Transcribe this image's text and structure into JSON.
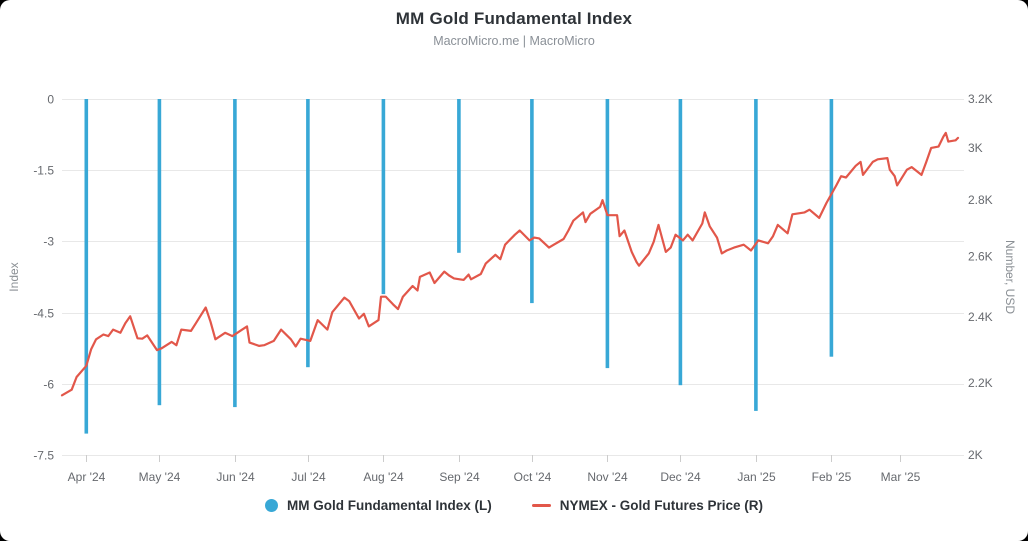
{
  "header": {
    "title": "MM Gold Fundamental Index",
    "subtitle": "MacroMicro.me | MacroMicro"
  },
  "colors": {
    "index_bar": "#38A8D6",
    "price_line": "#E2574A",
    "grid": "#E8E8E8",
    "tick_mark": "#CCCCCC",
    "tick_label": "#66696E",
    "axis_title": "#8A8F94",
    "card_bg": "#FFFFFF",
    "page_bg": "#000000"
  },
  "legend": {
    "items": [
      {
        "label": "MM Gold Fundamental Index (L)",
        "swatch": "circle-icon"
      },
      {
        "label": "NYMEX - Gold Futures Price (R)",
        "swatch": "line-icon"
      }
    ]
  },
  "chart_data": {
    "type": "mixed",
    "x_axis": {
      "range": [
        "2024-03-22",
        "2025-03-25"
      ],
      "ticks": [
        {
          "date": "2024-04-01",
          "label": "Apr '24"
        },
        {
          "date": "2024-05-01",
          "label": "May '24"
        },
        {
          "date": "2024-06-01",
          "label": "Jun '24"
        },
        {
          "date": "2024-07-01",
          "label": "Jul '24"
        },
        {
          "date": "2024-08-01",
          "label": "Aug '24"
        },
        {
          "date": "2024-09-01",
          "label": "Sep '24"
        },
        {
          "date": "2024-10-01",
          "label": "Oct '24"
        },
        {
          "date": "2024-11-01",
          "label": "Nov '24"
        },
        {
          "date": "2024-12-01",
          "label": "Dec '24"
        },
        {
          "date": "2025-01-01",
          "label": "Jan '25"
        },
        {
          "date": "2025-02-01",
          "label": "Feb '25"
        },
        {
          "date": "2025-03-01",
          "label": "Mar '25"
        }
      ]
    },
    "y_left": {
      "title": "Index",
      "scale": "linear",
      "range": [
        -7.5,
        0
      ],
      "ticks": [
        {
          "v": 0,
          "label": "0"
        },
        {
          "v": -1.5,
          "label": "-1.5"
        },
        {
          "v": -3,
          "label": "-3"
        },
        {
          "v": -4.5,
          "label": "-4.5"
        },
        {
          "v": -6,
          "label": "-6"
        },
        {
          "v": -7.5,
          "label": "-7.5"
        }
      ]
    },
    "y_right": {
      "title": "Number, USD",
      "scale": "log",
      "range": [
        2000,
        3200
      ],
      "ticks": [
        {
          "v": 3200,
          "label": "3.2K"
        },
        {
          "v": 3000,
          "label": "3K"
        },
        {
          "v": 2800,
          "label": "2.8K"
        },
        {
          "v": 2600,
          "label": "2.6K"
        },
        {
          "v": 2400,
          "label": "2.4K"
        },
        {
          "v": 2200,
          "label": "2.2K"
        },
        {
          "v": 2000,
          "label": "2K"
        }
      ]
    },
    "series": [
      {
        "name": "MM Gold Fundamental Index (L)",
        "type": "bar",
        "axis": "left",
        "points": [
          [
            "2024-04-01",
            -7.05
          ],
          [
            "2024-05-01",
            -6.45
          ],
          [
            "2024-06-01",
            -6.49
          ],
          [
            "2024-07-01",
            -5.65
          ],
          [
            "2024-08-01",
            -4.11
          ],
          [
            "2024-09-01",
            -3.24
          ],
          [
            "2024-10-01",
            -4.3
          ],
          [
            "2024-11-01",
            -5.67
          ],
          [
            "2024-12-01",
            -6.03
          ],
          [
            "2025-01-01",
            -6.57
          ],
          [
            "2025-02-01",
            -5.43
          ]
        ]
      },
      {
        "name": "NYMEX - Gold Futures Price (R)",
        "type": "line",
        "axis": "right",
        "points": [
          [
            "2024-03-22",
            2164
          ],
          [
            "2024-03-26",
            2180
          ],
          [
            "2024-03-28",
            2217
          ],
          [
            "2024-04-01",
            2250
          ],
          [
            "2024-04-03",
            2300
          ],
          [
            "2024-04-05",
            2330
          ],
          [
            "2024-04-08",
            2345
          ],
          [
            "2024-04-10",
            2340
          ],
          [
            "2024-04-12",
            2360
          ],
          [
            "2024-04-15",
            2350
          ],
          [
            "2024-04-17",
            2380
          ],
          [
            "2024-04-19",
            2402
          ],
          [
            "2024-04-22",
            2333
          ],
          [
            "2024-04-24",
            2332
          ],
          [
            "2024-04-26",
            2342
          ],
          [
            "2024-04-30",
            2297
          ],
          [
            "2024-05-02",
            2303
          ],
          [
            "2024-05-06",
            2322
          ],
          [
            "2024-05-08",
            2312
          ],
          [
            "2024-05-10",
            2360
          ],
          [
            "2024-05-14",
            2356
          ],
          [
            "2024-05-16",
            2380
          ],
          [
            "2024-05-20",
            2430
          ],
          [
            "2024-05-22",
            2385
          ],
          [
            "2024-05-24",
            2330
          ],
          [
            "2024-05-28",
            2350
          ],
          [
            "2024-05-31",
            2340
          ],
          [
            "2024-06-04",
            2360
          ],
          [
            "2024-06-06",
            2370
          ],
          [
            "2024-06-07",
            2320
          ],
          [
            "2024-06-11",
            2310
          ],
          [
            "2024-06-13",
            2312
          ],
          [
            "2024-06-17",
            2325
          ],
          [
            "2024-06-20",
            2360
          ],
          [
            "2024-06-24",
            2330
          ],
          [
            "2024-06-26",
            2308
          ],
          [
            "2024-06-28",
            2332
          ],
          [
            "2024-07-02",
            2325
          ],
          [
            "2024-07-05",
            2390
          ],
          [
            "2024-07-09",
            2360
          ],
          [
            "2024-07-11",
            2415
          ],
          [
            "2024-07-16",
            2462
          ],
          [
            "2024-07-18",
            2450
          ],
          [
            "2024-07-22",
            2395
          ],
          [
            "2024-07-24",
            2410
          ],
          [
            "2024-07-26",
            2370
          ],
          [
            "2024-07-30",
            2390
          ],
          [
            "2024-07-31",
            2465
          ],
          [
            "2024-08-02",
            2465
          ],
          [
            "2024-08-05",
            2440
          ],
          [
            "2024-08-07",
            2425
          ],
          [
            "2024-08-09",
            2465
          ],
          [
            "2024-08-13",
            2500
          ],
          [
            "2024-08-15",
            2485
          ],
          [
            "2024-08-16",
            2530
          ],
          [
            "2024-08-20",
            2545
          ],
          [
            "2024-08-22",
            2510
          ],
          [
            "2024-08-26",
            2548
          ],
          [
            "2024-08-28",
            2535
          ],
          [
            "2024-08-30",
            2525
          ],
          [
            "2024-09-03",
            2520
          ],
          [
            "2024-09-05",
            2538
          ],
          [
            "2024-09-06",
            2522
          ],
          [
            "2024-09-10",
            2540
          ],
          [
            "2024-09-12",
            2575
          ],
          [
            "2024-09-16",
            2605
          ],
          [
            "2024-09-18",
            2590
          ],
          [
            "2024-09-20",
            2640
          ],
          [
            "2024-09-24",
            2675
          ],
          [
            "2024-09-26",
            2690
          ],
          [
            "2024-09-30",
            2655
          ],
          [
            "2024-10-02",
            2665
          ],
          [
            "2024-10-04",
            2662
          ],
          [
            "2024-10-08",
            2630
          ],
          [
            "2024-10-10",
            2640
          ],
          [
            "2024-10-14",
            2660
          ],
          [
            "2024-10-16",
            2690
          ],
          [
            "2024-10-18",
            2725
          ],
          [
            "2024-10-22",
            2755
          ],
          [
            "2024-10-23",
            2720
          ],
          [
            "2024-10-25",
            2750
          ],
          [
            "2024-10-29",
            2775
          ],
          [
            "2024-10-30",
            2800
          ],
          [
            "2024-11-01",
            2745
          ],
          [
            "2024-11-05",
            2745
          ],
          [
            "2024-11-06",
            2670
          ],
          [
            "2024-11-08",
            2690
          ],
          [
            "2024-11-11",
            2615
          ],
          [
            "2024-11-13",
            2580
          ],
          [
            "2024-11-14",
            2568
          ],
          [
            "2024-11-18",
            2610
          ],
          [
            "2024-11-20",
            2650
          ],
          [
            "2024-11-22",
            2710
          ],
          [
            "2024-11-25",
            2615
          ],
          [
            "2024-11-27",
            2630
          ],
          [
            "2024-11-29",
            2675
          ],
          [
            "2024-12-02",
            2655
          ],
          [
            "2024-12-04",
            2675
          ],
          [
            "2024-12-06",
            2655
          ],
          [
            "2024-12-10",
            2715
          ],
          [
            "2024-12-11",
            2755
          ],
          [
            "2024-12-13",
            2705
          ],
          [
            "2024-12-16",
            2665
          ],
          [
            "2024-12-18",
            2610
          ],
          [
            "2024-12-20",
            2620
          ],
          [
            "2024-12-23",
            2630
          ],
          [
            "2024-12-27",
            2640
          ],
          [
            "2024-12-30",
            2620
          ],
          [
            "2025-01-02",
            2655
          ],
          [
            "2025-01-06",
            2645
          ],
          [
            "2025-01-08",
            2670
          ],
          [
            "2025-01-10",
            2710
          ],
          [
            "2025-01-14",
            2680
          ],
          [
            "2025-01-16",
            2748
          ],
          [
            "2025-01-21",
            2755
          ],
          [
            "2025-01-23",
            2765
          ],
          [
            "2025-01-27",
            2735
          ],
          [
            "2025-01-30",
            2790
          ],
          [
            "2025-02-03",
            2855
          ],
          [
            "2025-02-05",
            2890
          ],
          [
            "2025-02-07",
            2885
          ],
          [
            "2025-02-11",
            2930
          ],
          [
            "2025-02-13",
            2945
          ],
          [
            "2025-02-14",
            2895
          ],
          [
            "2025-02-18",
            2945
          ],
          [
            "2025-02-20",
            2955
          ],
          [
            "2025-02-24",
            2960
          ],
          [
            "2025-02-25",
            2915
          ],
          [
            "2025-02-27",
            2890
          ],
          [
            "2025-02-28",
            2855
          ],
          [
            "2025-03-04",
            2915
          ],
          [
            "2025-03-06",
            2925
          ],
          [
            "2025-03-10",
            2895
          ],
          [
            "2025-03-12",
            2945
          ],
          [
            "2025-03-14",
            3000
          ],
          [
            "2025-03-17",
            3005
          ],
          [
            "2025-03-19",
            3045
          ],
          [
            "2025-03-20",
            3060
          ],
          [
            "2025-03-21",
            3025
          ],
          [
            "2025-03-24",
            3030
          ],
          [
            "2025-03-25",
            3040
          ]
        ]
      }
    ]
  }
}
